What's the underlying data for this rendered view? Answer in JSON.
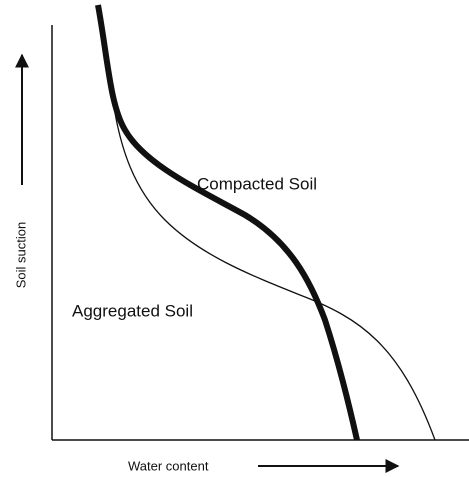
{
  "labels": {
    "y_axis": "Soil suction",
    "x_axis": "Water content",
    "curve_compacted": "Compacted Soil",
    "curve_aggregated": "Aggregated Soil"
  }
}
